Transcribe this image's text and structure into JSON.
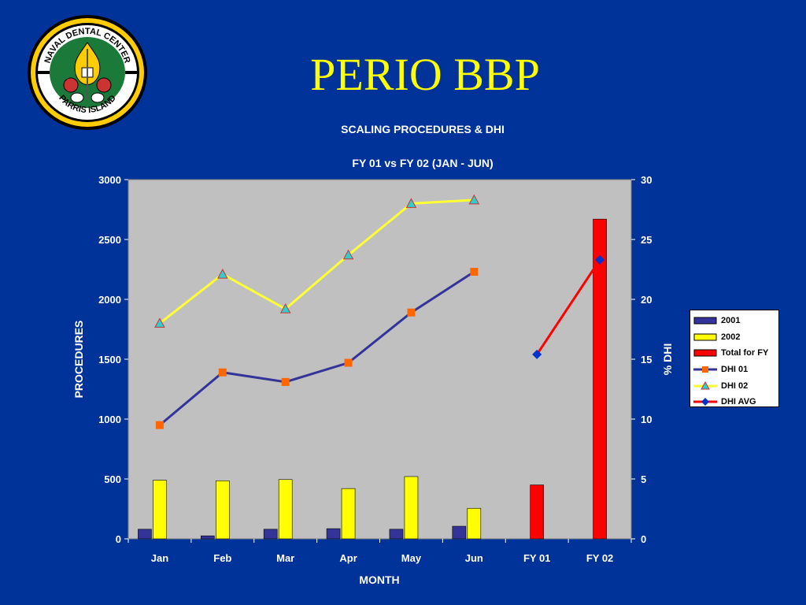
{
  "slide": {
    "title": "PERIO BBP",
    "logo_text_top": "NAVAL DENTAL CENTER",
    "logo_text_bottom": "PARRIS ISLAND"
  },
  "chart_data": {
    "type": "bar",
    "title": "SCALING PROCEDURES & DHI",
    "subtitle": "FY 01 vs FY 02 (JAN - JUN)",
    "xlabel": "MONTH",
    "ylabel": "PROCEDURES",
    "y2label": "% DHI",
    "categories": [
      "Jan",
      "Feb",
      "Mar",
      "Apr",
      "May",
      "Jun",
      "FY 01",
      "FY 02"
    ],
    "ylim": [
      0,
      3000
    ],
    "yticks": [
      "0",
      "500",
      "1000",
      "1500",
      "2000",
      "2500",
      "3000"
    ],
    "y2lim": [
      0,
      30
    ],
    "y2ticks": [
      "0",
      "5",
      "10",
      "15",
      "20",
      "25",
      "30"
    ],
    "grid": false,
    "legend_position": "right",
    "series": [
      {
        "name": "2001",
        "kind": "bar",
        "axis": "left",
        "color": "#333399",
        "values": [
          80,
          25,
          80,
          85,
          80,
          105,
          null,
          null
        ]
      },
      {
        "name": "2002",
        "kind": "bar",
        "axis": "left",
        "color": "#ffff00",
        "values": [
          490,
          485,
          495,
          420,
          520,
          255,
          null,
          null
        ]
      },
      {
        "name": "Total for FY",
        "kind": "bar",
        "axis": "left",
        "color": "#ff0000",
        "values": [
          null,
          null,
          null,
          null,
          null,
          null,
          450,
          2670
        ]
      },
      {
        "name": "DHI 01",
        "kind": "line",
        "axis": "right",
        "color": "#333399",
        "marker": "square",
        "marker_color": "#ff6600",
        "values": [
          9.5,
          13.9,
          13.1,
          14.7,
          18.9,
          22.3,
          null,
          null
        ]
      },
      {
        "name": "DHI 02",
        "kind": "line",
        "axis": "right",
        "color": "#ffff33",
        "marker": "triangle",
        "marker_color": "#33cccc",
        "values": [
          18.0,
          22.1,
          19.2,
          23.7,
          28.0,
          28.3,
          null,
          null
        ]
      },
      {
        "name": "DHI AVG",
        "kind": "line",
        "axis": "right",
        "color": "#ff0000",
        "marker": "diamond",
        "marker_color": "#0033cc",
        "values": [
          null,
          null,
          null,
          null,
          null,
          null,
          15.4,
          23.3
        ]
      }
    ]
  }
}
